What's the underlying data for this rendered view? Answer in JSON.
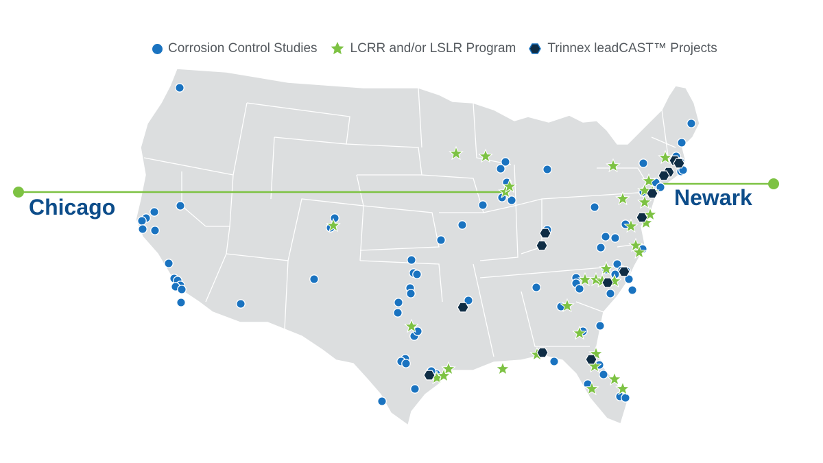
{
  "legend": {
    "corrosion": "Corrosion Control Studies",
    "lcrr": "LCRR and/or LSLR Program",
    "trinnex": "Trinnex leadCAST™ Projects"
  },
  "labels": {
    "chicago": "Chicago",
    "newark": "Newark"
  },
  "colors": {
    "land": "#dcdedf",
    "border": "#ffffff",
    "corrosion": "#1a73c0",
    "lcrr": "#7dc243",
    "trinnex": "#0f2d45",
    "line": "#7dc243",
    "label": "#0d4d8a"
  },
  "icons": {
    "corrosion": "circle-marker",
    "lcrr": "star-marker",
    "trinnex": "hexagon-marker"
  }
}
